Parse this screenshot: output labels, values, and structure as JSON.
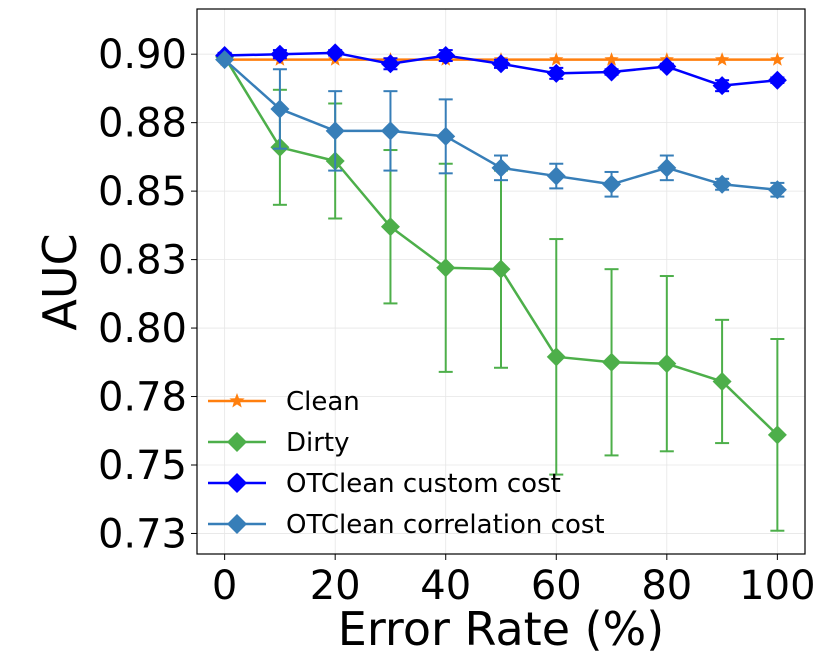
{
  "chart_data": {
    "type": "line",
    "title": "",
    "xlabel": "Error Rate (%)",
    "ylabel": "AUC",
    "xlim": [
      -5,
      105
    ],
    "ylim": [
      0.7225,
      0.9215
    ],
    "x": [
      0,
      10,
      20,
      30,
      40,
      50,
      60,
      70,
      80,
      90,
      100
    ],
    "xticks": [
      0,
      20,
      40,
      60,
      80,
      100
    ],
    "xtick_labels": [
      "0",
      "20",
      "40",
      "60",
      "80",
      "100"
    ],
    "yticks": [
      0.73,
      0.755,
      0.78,
      0.805,
      0.83,
      0.855,
      0.88,
      0.905
    ],
    "ytick_labels": [
      "0.73",
      "0.75",
      "0.78",
      "0.80",
      "0.83",
      "0.85",
      "0.88",
      "0.90"
    ],
    "grid": true,
    "legend_position": "bottom-left",
    "series": [
      {
        "name": "Clean",
        "color": "#ff7f0e",
        "marker": "star",
        "values": [
          0.903,
          0.903,
          0.903,
          0.903,
          0.903,
          0.903,
          0.903,
          0.903,
          0.903,
          0.903,
          0.903
        ],
        "errors": [
          0,
          0,
          0,
          0,
          0,
          0,
          0,
          0,
          0,
          0,
          0
        ]
      },
      {
        "name": "Dirty",
        "color": "#4daf4a",
        "marker": "diamond",
        "values": [
          0.904,
          0.871,
          0.866,
          0.842,
          0.827,
          0.8265,
          0.7945,
          0.7925,
          0.792,
          0.7855,
          0.766
        ],
        "errors": [
          0,
          0.021,
          0.021,
          0.028,
          0.038,
          0.036,
          0.043,
          0.034,
          0.032,
          0.0225,
          0.035
        ]
      },
      {
        "name": "OTClean custom cost",
        "color": "#0000ff",
        "marker": "diamond",
        "values": [
          0.9045,
          0.905,
          0.9055,
          0.9015,
          0.9045,
          0.9015,
          0.898,
          0.8985,
          0.9005,
          0.8935,
          0.8955
        ],
        "errors": [
          0.001,
          0.0015,
          0.001,
          0.002,
          0.002,
          0.0015,
          0.002,
          0.001,
          0.001,
          0.002,
          0.001
        ]
      },
      {
        "name": "OTClean correlation cost",
        "color": "#377eb8",
        "marker": "diamond",
        "values": [
          0.903,
          0.885,
          0.877,
          0.877,
          0.875,
          0.8635,
          0.8605,
          0.8575,
          0.8635,
          0.8575,
          0.8555
        ],
        "errors": [
          0,
          0.0145,
          0.0145,
          0.0145,
          0.0135,
          0.0045,
          0.0045,
          0.0045,
          0.0045,
          0.002,
          0.0025
        ]
      }
    ]
  }
}
